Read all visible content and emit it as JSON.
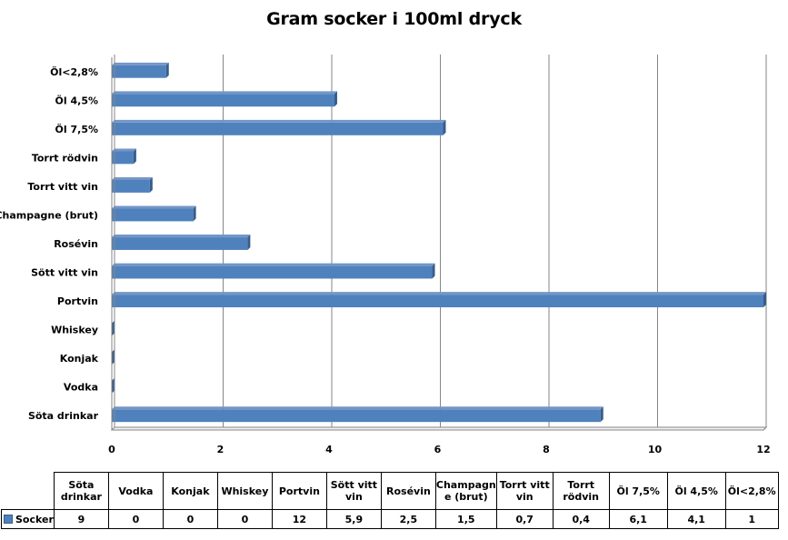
{
  "chart_data": {
    "type": "bar",
    "orientation": "horizontal",
    "title": "Gram socker i 100ml dryck",
    "categories": [
      "Söta drinkar",
      "Vodka",
      "Konjak",
      "Whiskey",
      "Portvin",
      "Sött vitt vin",
      "Rosévin",
      "Champagne (brut)",
      "Torrt vitt vin",
      "Torrt rödvin",
      "Öl 7,5%",
      "Öl 4,5%",
      "Öl<2,8%"
    ],
    "table_headers": [
      "Söta drinkar",
      "Vodka",
      "Konjak",
      "Whiskey",
      "Portvin",
      "Sött vitt vin",
      "Rosévin",
      "Champagn e (brut)",
      "Torrt vitt vin",
      "Torrt rödvin",
      "Öl 7,5%",
      "Öl 4,5%",
      "Öl<2,8%"
    ],
    "series": [
      {
        "name": "Socker",
        "values": [
          9,
          0,
          0,
          0,
          12,
          5.9,
          2.5,
          1.5,
          0.7,
          0.4,
          6.1,
          4.1,
          1
        ],
        "display_values": [
          "9",
          "0",
          "0",
          "0",
          "12",
          "5,9",
          "2,5",
          "1,5",
          "0,7",
          "0,4",
          "6,1",
          "4,1",
          "1"
        ]
      }
    ],
    "xlim": [
      0,
      12
    ],
    "ticks": [
      "0",
      "2",
      "4",
      "6",
      "8",
      "10",
      "12"
    ],
    "grid": true,
    "legend": "data-table",
    "colors": {
      "bar": "#4F81BD",
      "bar_dark": "#385D8A",
      "grid": "#868686"
    }
  }
}
